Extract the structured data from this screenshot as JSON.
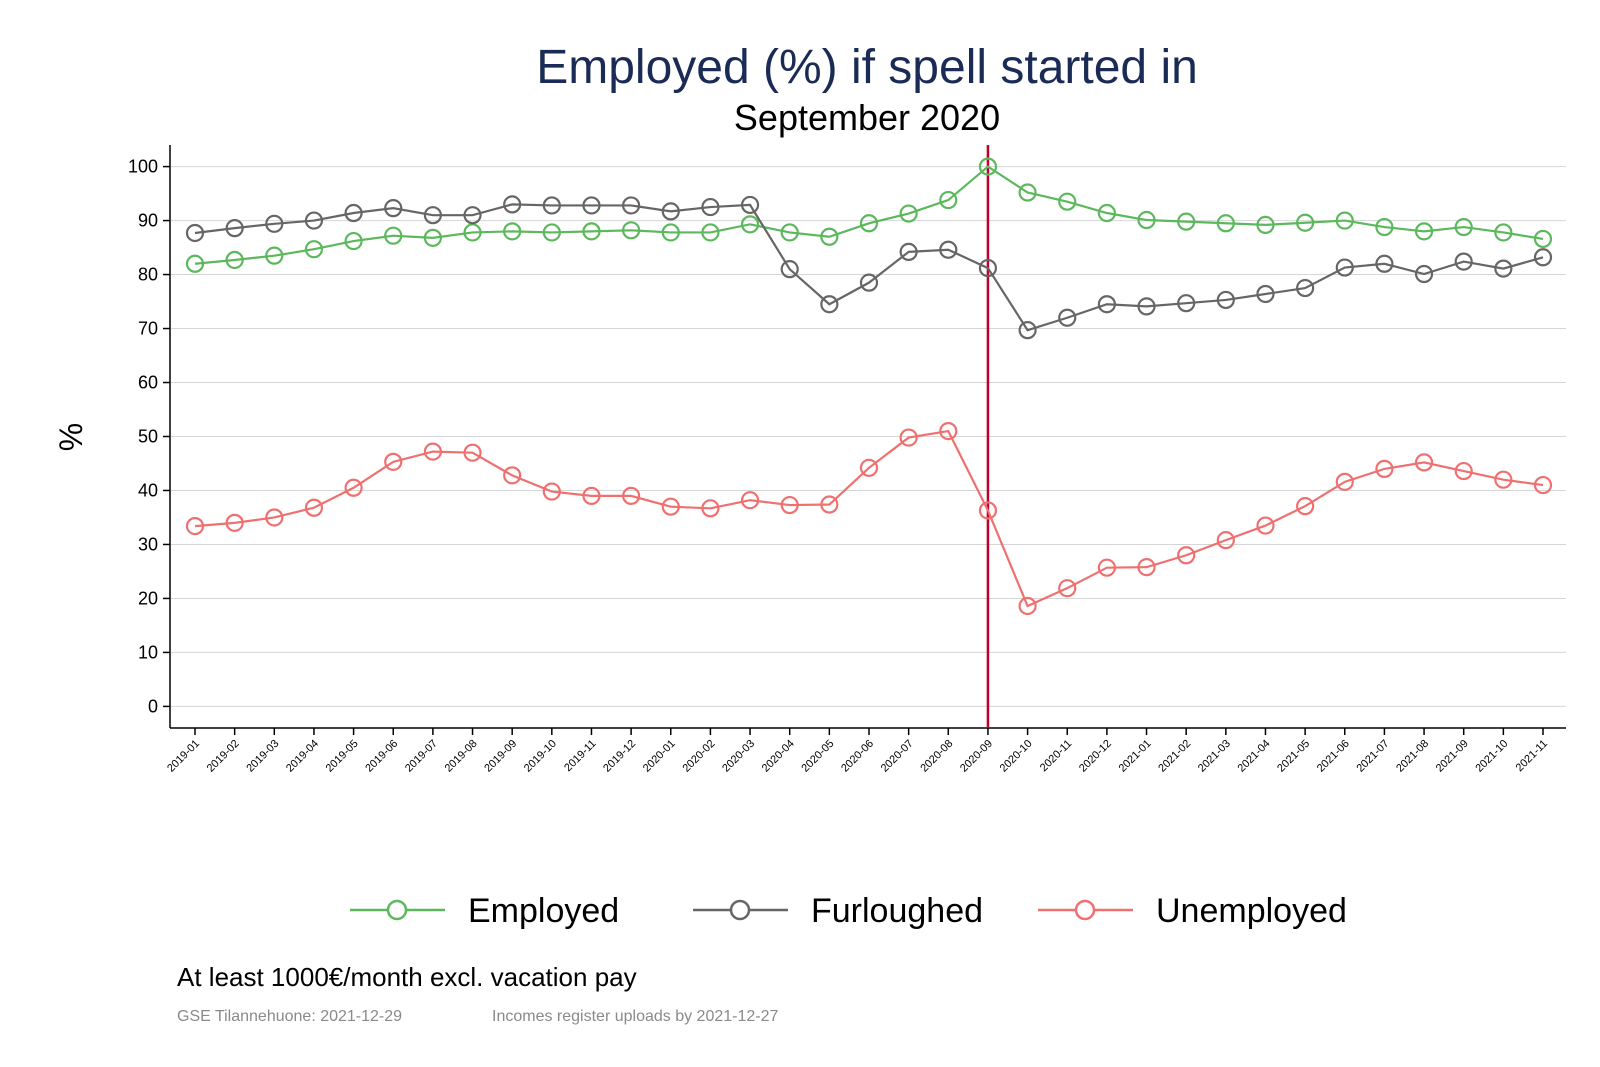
{
  "chart_data": {
    "type": "line",
    "title": "Employed (%) if spell started in",
    "subtitle": "September 2020",
    "ylabel": "%",
    "xlabel": "",
    "ylim": [
      -4,
      104
    ],
    "yticks": [
      0,
      10,
      20,
      30,
      40,
      50,
      60,
      70,
      80,
      90,
      100
    ],
    "grid": true,
    "legend_position": "bottom",
    "reference_line": {
      "x": "2020-09",
      "color": "#c0002a"
    },
    "categories": [
      "2019-01",
      "2019-02",
      "2019-03",
      "2019-04",
      "2019-05",
      "2019-06",
      "2019-07",
      "2019-08",
      "2019-09",
      "2019-10",
      "2019-11",
      "2019-12",
      "2020-01",
      "2020-02",
      "2020-03",
      "2020-04",
      "2020-05",
      "2020-06",
      "2020-07",
      "2020-08",
      "2020-09",
      "2020-10",
      "2020-11",
      "2020-12",
      "2021-01",
      "2021-02",
      "2021-03",
      "2021-04",
      "2021-05",
      "2021-06",
      "2021-07",
      "2021-08",
      "2021-09",
      "2021-10",
      "2021-11"
    ],
    "series": [
      {
        "name": "Employed",
        "color": "#5cb85c",
        "values": [
          82,
          82.7,
          83.5,
          84.7,
          86.2,
          87.2,
          86.8,
          87.8,
          88,
          87.8,
          88,
          88.2,
          87.8,
          87.8,
          89.3,
          87.8,
          87,
          89.5,
          91.3,
          93.8,
          100,
          95.2,
          93.5,
          91.4,
          90.1,
          89.8,
          89.5,
          89.2,
          89.6,
          90,
          88.8,
          88,
          88.8,
          87.8,
          86.6
        ]
      },
      {
        "name": "Furloughed",
        "color": "#666666",
        "values": [
          87.7,
          88.6,
          89.4,
          90,
          91.4,
          92.3,
          91,
          91,
          93,
          92.8,
          92.8,
          92.8,
          91.7,
          92.5,
          92.9,
          81,
          74.5,
          78.5,
          84.2,
          84.6,
          81.2,
          69.7,
          72,
          74.5,
          74.1,
          74.7,
          75.3,
          76.4,
          77.5,
          81.3,
          82,
          80.1,
          82.4,
          81.1,
          83.2
        ]
      },
      {
        "name": "Unemployed",
        "color": "#f07070",
        "values": [
          33.4,
          34,
          35,
          36.8,
          40.5,
          45.3,
          47.2,
          47,
          42.8,
          39.8,
          39,
          39,
          37,
          36.7,
          38.2,
          37.3,
          37.4,
          44.2,
          49.8,
          51,
          36.3,
          18.6,
          21.9,
          25.7,
          25.8,
          28,
          30.8,
          33.5,
          37.1,
          41.6,
          44,
          45.2,
          43.6,
          42,
          41
        ]
      }
    ],
    "note": "At least 1000€/month excl. vacation pay",
    "source_left": "GSE Tilannehuone: 2021-12-29",
    "source_right": "Incomes register uploads by 2021-12-27"
  }
}
